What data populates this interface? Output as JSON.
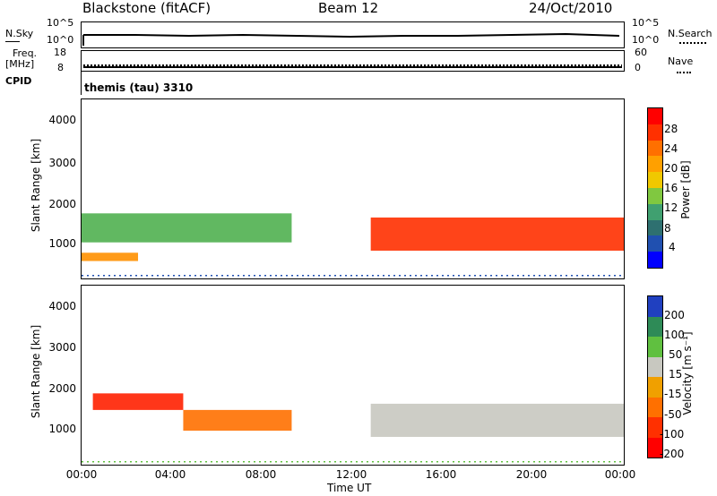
{
  "header": {
    "station": "Blackstone (fitACF)",
    "beam": "Beam 12",
    "date": "24/Oct/2010"
  },
  "noise_panel": {
    "left_label": "N.Sky",
    "right_label": "N.Search",
    "left_ticks": [
      "10^5",
      "10^0"
    ],
    "right_ticks": [
      "10^5",
      "10^0"
    ]
  },
  "freq_panel": {
    "left_label": "Freq.",
    "left_unit": "[MHz]",
    "right_label": "Nave",
    "left_ticks": [
      "18",
      "8"
    ],
    "right_ticks": [
      "60",
      "0"
    ]
  },
  "cpid": {
    "label": "CPID",
    "value": "themis (tau) 3310"
  },
  "power_panel": {
    "ylabel": "Slant Range [km]",
    "yticks": [
      "4000",
      "3000",
      "2000",
      "1000"
    ],
    "colorbar_label": "Power [dB]",
    "colorbar_ticks": [
      "28",
      "24",
      "20",
      "16",
      "12",
      "8",
      "4"
    ],
    "colorbar_colors": [
      "#ff0000",
      "#ff5500",
      "#ff9000",
      "#ffc000",
      "#a0d000",
      "#50b050",
      "#2e8b57",
      "#3060b0",
      "#0000ff"
    ]
  },
  "velocity_panel": {
    "ylabel": "Slant Range [km]",
    "yticks": [
      "4000",
      "3000",
      "2000",
      "1000"
    ],
    "colorbar_label": "Velocity [m s⁻¹]",
    "colorbar_ticks": [
      "200",
      "100",
      "50",
      "15",
      "-15",
      "-50",
      "-100",
      "-200"
    ],
    "colorbar_colors": [
      "#2040c0",
      "#2e8b57",
      "#60c040",
      "#c8c8c0",
      "#f0a000",
      "#ff7000",
      "#ff3000",
      "#ff0000"
    ]
  },
  "xaxis": {
    "label": "Time UT",
    "ticks": [
      "00:00",
      "04:00",
      "08:00",
      "12:00",
      "16:00",
      "20:00",
      "00:00"
    ]
  },
  "chart_data": {
    "type": "heatmap",
    "title": "Blackstone (fitACF) Beam 12 24/Oct/2010",
    "xlabel": "Time UT",
    "ylabel": "Slant Range [km]",
    "x_range_hours": [
      0,
      24
    ],
    "y_range_km": [
      180,
      4500
    ],
    "power_echo_bands": [
      {
        "t_start": 0.0,
        "t_end": 9.3,
        "range_low": 1050,
        "range_high": 1750,
        "power_db": 14
      },
      {
        "t_start": 0.0,
        "t_end": 2.5,
        "range_low": 600,
        "range_high": 800,
        "power_db": 20
      },
      {
        "t_start": 12.8,
        "t_end": 24.0,
        "range_low": 850,
        "range_high": 1650,
        "power_db": 24
      }
    ],
    "velocity_echo_bands": [
      {
        "t_start": 0.5,
        "t_end": 4.5,
        "range_low": 1500,
        "range_high": 1900,
        "velocity": -150
      },
      {
        "t_start": 4.5,
        "t_end": 9.3,
        "range_low": 1000,
        "range_high": 1500,
        "velocity": -60
      },
      {
        "t_start": 12.8,
        "t_end": 24.0,
        "range_low": 850,
        "range_high": 1650,
        "velocity": 0
      }
    ]
  }
}
